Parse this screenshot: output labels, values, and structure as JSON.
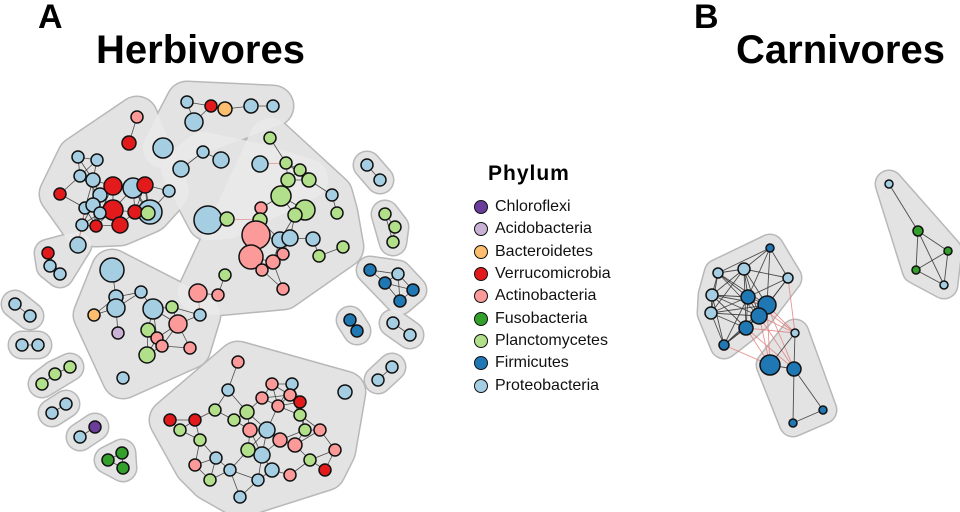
{
  "panels": [
    {
      "letter": "A",
      "title": "Herbivores"
    },
    {
      "letter": "B",
      "title": "Carnivores"
    }
  ],
  "legend": {
    "title": "Phylum",
    "items": [
      {
        "key": "C",
        "label": "Chloroflexi",
        "color": "#6a3d9a"
      },
      {
        "key": "A",
        "label": "Acidobacteria",
        "color": "#cab2d6"
      },
      {
        "key": "B",
        "label": "Bacteroidetes",
        "color": "#fdbf6f"
      },
      {
        "key": "V",
        "label": "Verrucomicrobia",
        "color": "#e31a1c"
      },
      {
        "key": "K",
        "label": "Actinobacteria",
        "color": "#fb9a99"
      },
      {
        "key": "F",
        "label": "Fusobacteria",
        "color": "#33a02c"
      },
      {
        "key": "P",
        "label": "Planctomycetes",
        "color": "#b2df8a"
      },
      {
        "key": "M",
        "label": "Firmicutes",
        "color": "#1f78b4"
      },
      {
        "key": "Q",
        "label": "Proteobacteria",
        "color": "#a6cee3"
      }
    ]
  },
  "edge_colors": {
    "positive": "#333333",
    "negative": "#e07b7b"
  },
  "module_fill": "#ebebeb",
  "module_stroke": "#b8b8b8"
}
